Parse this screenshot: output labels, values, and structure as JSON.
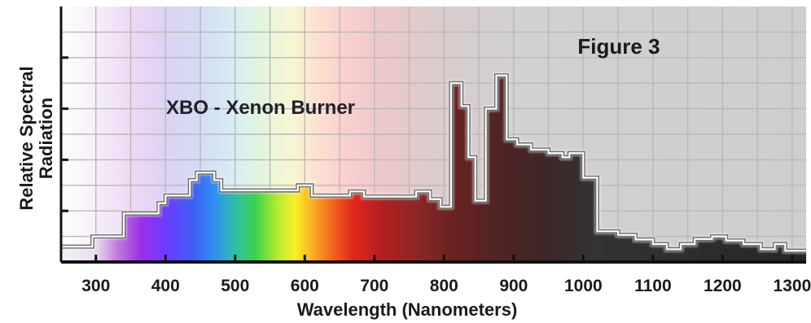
{
  "chart_data": {
    "type": "area",
    "title": "Figure 3",
    "annotation": "XBO - Xenon Burner",
    "xlabel": "Wavelength (Nanometers)",
    "ylabel_line1": "Relative Spectral",
    "ylabel_line2": "Radiation",
    "xlim": [
      250,
      1320
    ],
    "ylim": [
      0,
      5
    ],
    "grid": true,
    "x_ticks": [
      300,
      400,
      500,
      600,
      700,
      800,
      900,
      1000,
      1100,
      1200,
      1300
    ],
    "x_tick_labels": [
      "300",
      "400",
      "500",
      "600",
      "700",
      "800",
      "900",
      "1000",
      "1100",
      "1200",
      "1300"
    ],
    "y_ticks": [
      1,
      2,
      3,
      4
    ],
    "series": [
      {
        "steps": [
          [
            250,
            0.3
          ],
          [
            295,
            0.5
          ],
          [
            340,
            0.95
          ],
          [
            390,
            1.15
          ],
          [
            400,
            1.3
          ],
          [
            435,
            1.6
          ],
          [
            445,
            1.75
          ],
          [
            470,
            1.6
          ],
          [
            480,
            1.4
          ],
          [
            520,
            1.4
          ],
          [
            560,
            1.4
          ],
          [
            590,
            1.5
          ],
          [
            610,
            1.3
          ],
          [
            640,
            1.3
          ],
          [
            650,
            1.3
          ],
          [
            665,
            1.38
          ],
          [
            685,
            1.28
          ],
          [
            750,
            1.28
          ],
          [
            760,
            1.38
          ],
          [
            780,
            1.23
          ],
          [
            795,
            1.08
          ],
          [
            810,
            3.5
          ],
          [
            825,
            3.05
          ],
          [
            835,
            2.05
          ],
          [
            845,
            1.2
          ],
          [
            860,
            3.0
          ],
          [
            875,
            3.65
          ],
          [
            890,
            2.4
          ],
          [
            905,
            2.3
          ],
          [
            925,
            2.2
          ],
          [
            950,
            2.13
          ],
          [
            970,
            2.05
          ],
          [
            980,
            2.13
          ],
          [
            1000,
            1.65
          ],
          [
            1020,
            0.6
          ],
          [
            1050,
            0.53
          ],
          [
            1075,
            0.44
          ],
          [
            1100,
            0.35
          ],
          [
            1120,
            0.25
          ],
          [
            1140,
            0.35
          ],
          [
            1160,
            0.45
          ],
          [
            1185,
            0.5
          ],
          [
            1205,
            0.42
          ],
          [
            1230,
            0.35
          ],
          [
            1255,
            0.25
          ],
          [
            1275,
            0.35
          ],
          [
            1290,
            0.22
          ],
          [
            1320,
            0.22
          ]
        ]
      }
    ]
  }
}
